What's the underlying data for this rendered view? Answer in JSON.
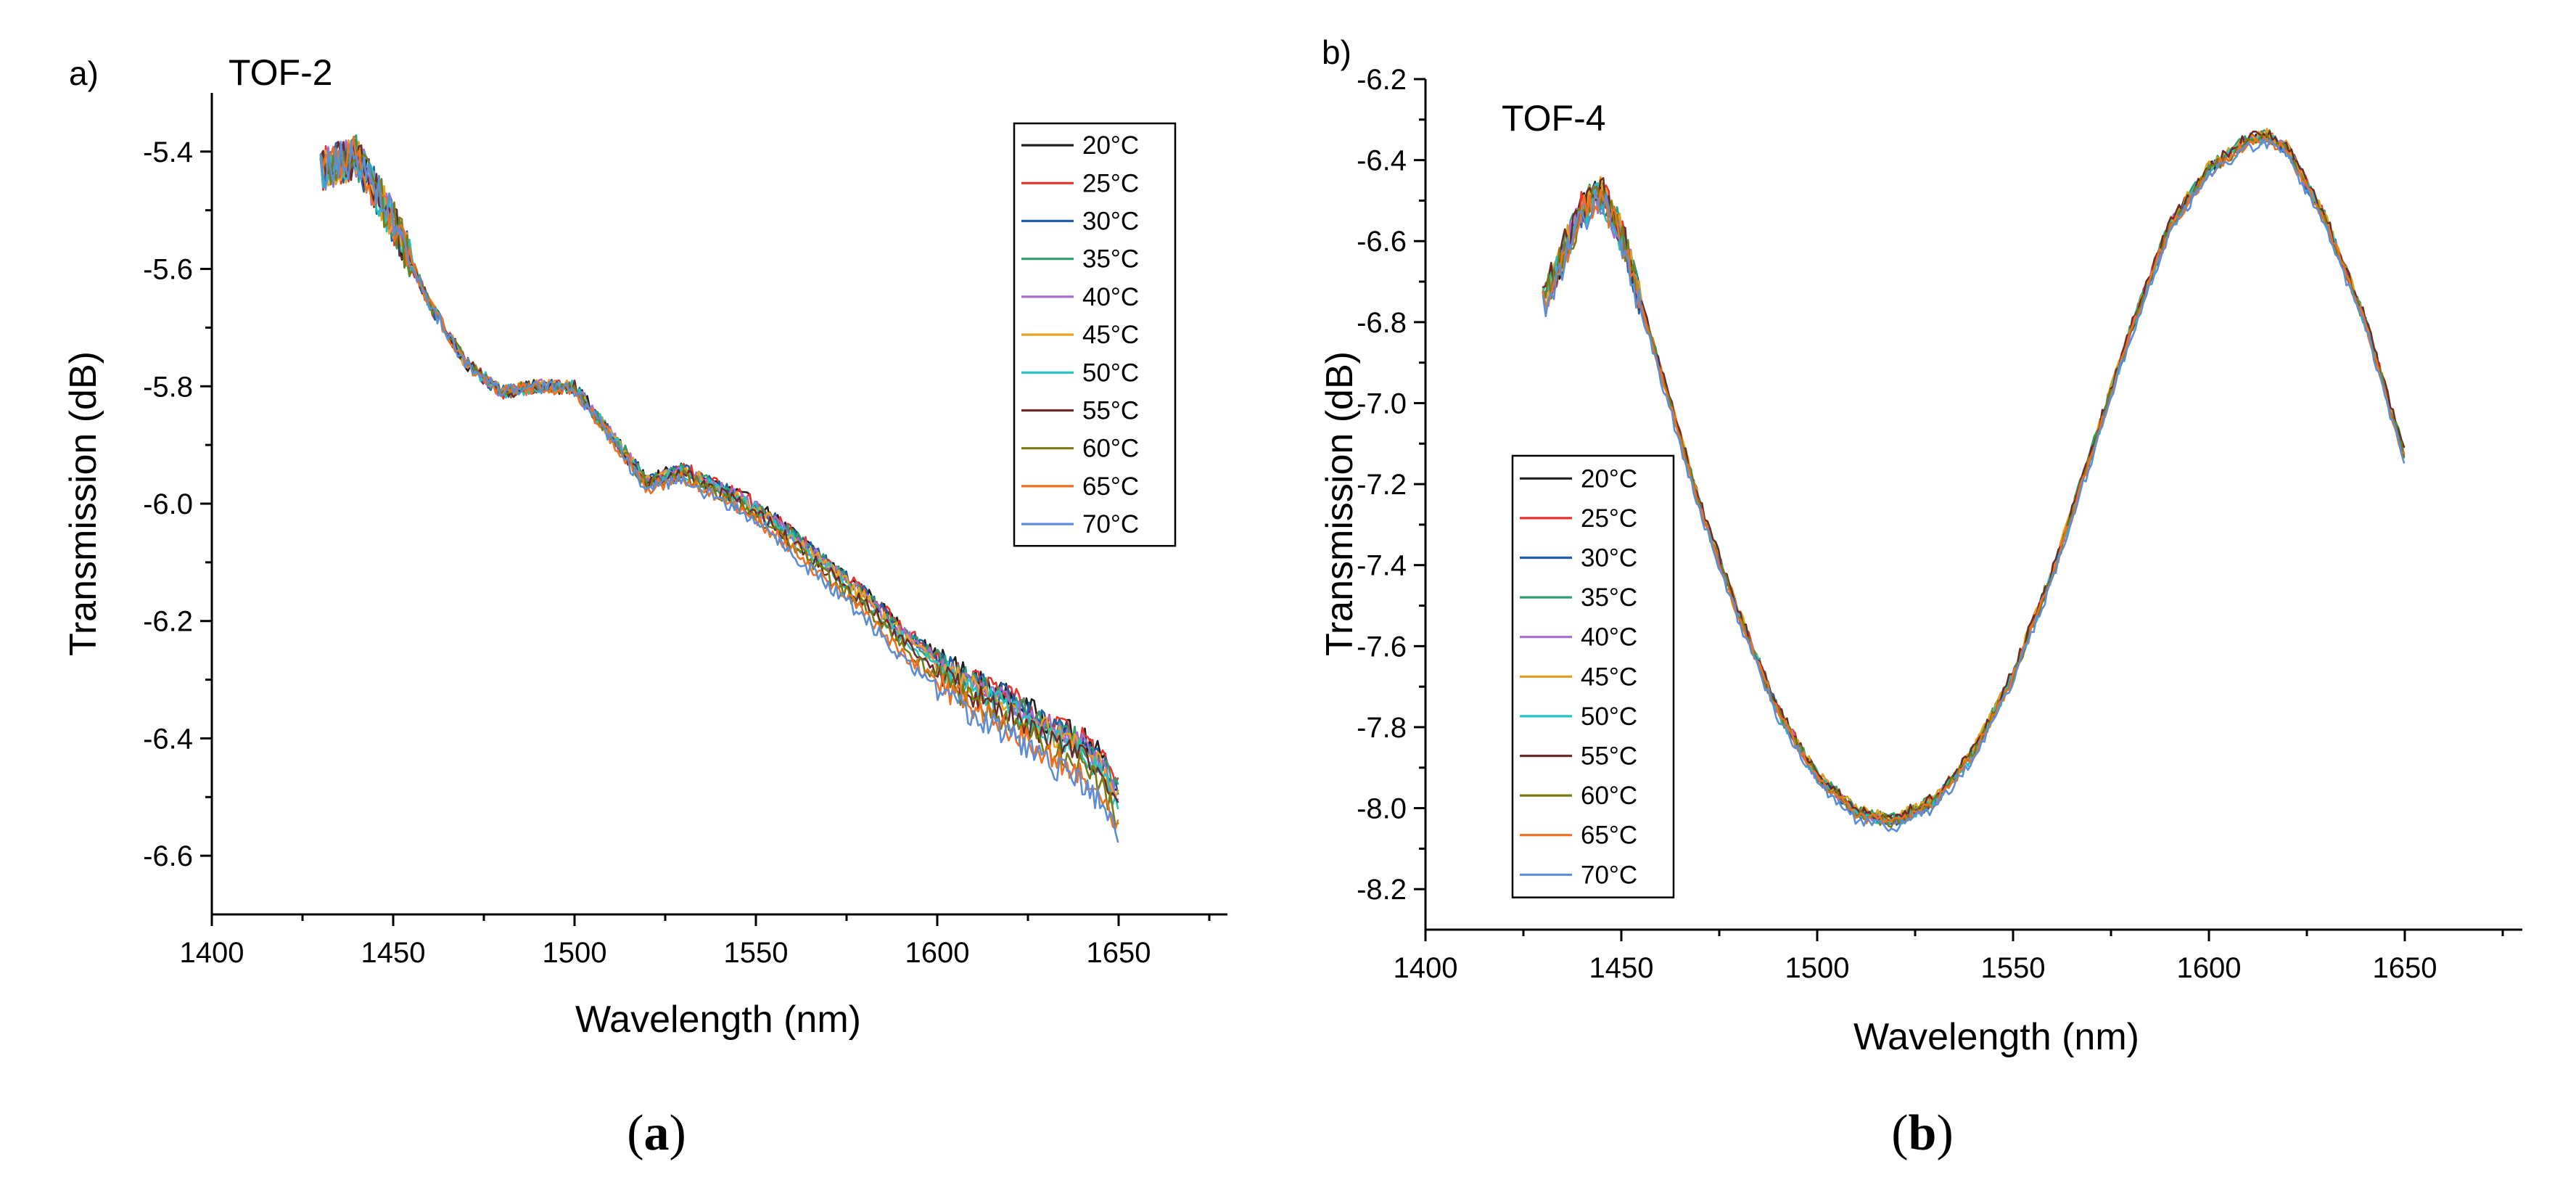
{
  "chart_data": [
    {
      "type": "line",
      "panel_label": "a)",
      "title": "TOF-2",
      "caption": "a",
      "xlabel": "Wavelength (nm)",
      "ylabel": "Transmission (dB)",
      "xlim": [
        1400,
        1680
      ],
      "ylim": [
        -6.7,
        -5.3
      ],
      "x_ticks": [
        1400,
        1450,
        1500,
        1550,
        1600,
        1650
      ],
      "x_tick_labels": [
        "1400",
        "1450",
        "1500",
        "1550",
        "1600",
        "1650"
      ],
      "y_ticks": [
        -5.4,
        -5.6,
        -5.8,
        -6.0,
        -6.2,
        -6.4,
        -6.6
      ],
      "y_tick_labels": [
        "-5.4",
        "-5.6",
        "-5.8",
        "-6.0",
        "-6.2",
        "-6.4",
        "-6.6"
      ],
      "legend_position": "top-right",
      "x": [
        1430,
        1440,
        1450,
        1460,
        1470,
        1480,
        1490,
        1500,
        1510,
        1520,
        1530,
        1540,
        1550,
        1560,
        1570,
        1580,
        1590,
        1600,
        1610,
        1620,
        1630,
        1640,
        1645,
        1650
      ],
      "base_values": [
        -5.43,
        -5.41,
        -5.52,
        -5.66,
        -5.76,
        -5.81,
        -5.8,
        -5.8,
        -5.88,
        -5.96,
        -5.94,
        -5.97,
        -6.0,
        -6.05,
        -6.1,
        -6.15,
        -6.21,
        -6.26,
        -6.3,
        -6.33,
        -6.37,
        -6.4,
        -6.43,
        -6.49
      ],
      "series": [
        {
          "name": "20°C",
          "color": "#1f1f1f",
          "offset": 0.0
        },
        {
          "name": "25°C",
          "color": "#e8332a",
          "offset": 0.0
        },
        {
          "name": "30°C",
          "color": "#1f5ea8",
          "offset": -0.004
        },
        {
          "name": "35°C",
          "color": "#2f9e6b",
          "offset": -0.008
        },
        {
          "name": "40°C",
          "color": "#a86bd1",
          "offset": -0.012
        },
        {
          "name": "45°C",
          "color": "#e8a21f",
          "offset": -0.018
        },
        {
          "name": "50°C",
          "color": "#22c3c3",
          "offset": -0.026
        },
        {
          "name": "55°C",
          "color": "#6b2b2b",
          "offset": -0.036
        },
        {
          "name": "60°C",
          "color": "#7a7a12",
          "offset": -0.05
        },
        {
          "name": "65°C",
          "color": "#f07020",
          "offset": -0.066
        },
        {
          "name": "70°C",
          "color": "#5b8ed6",
          "offset": -0.08
        }
      ]
    },
    {
      "type": "line",
      "panel_label": "b)",
      "title": "TOF-4",
      "caption": "b",
      "xlabel": "Wavelength (nm)",
      "ylabel": "Transmission (dB)",
      "xlim": [
        1400,
        1680
      ],
      "ylim": [
        -8.3,
        -6.2
      ],
      "x_ticks": [
        1400,
        1450,
        1500,
        1550,
        1600,
        1650
      ],
      "x_tick_labels": [
        "1400",
        "1450",
        "1500",
        "1550",
        "1600",
        "1650"
      ],
      "y_ticks": [
        -6.2,
        -6.4,
        -6.6,
        -6.8,
        -7.0,
        -7.2,
        -7.4,
        -7.6,
        -7.8,
        -8.0,
        -8.2
      ],
      "y_tick_labels": [
        "-6.2",
        "-6.4",
        "-6.6",
        "-6.8",
        "-7.0",
        "-7.2",
        "-7.4",
        "-7.6",
        "-7.8",
        "-8.0",
        "-8.2"
      ],
      "legend_position": "bottom-left",
      "x": [
        1430,
        1440,
        1445,
        1450,
        1460,
        1470,
        1480,
        1490,
        1500,
        1510,
        1520,
        1530,
        1540,
        1550,
        1560,
        1570,
        1580,
        1590,
        1600,
        1610,
        1615,
        1620,
        1630,
        1640,
        1650
      ],
      "base_values": [
        -6.75,
        -6.52,
        -6.48,
        -6.58,
        -6.92,
        -7.25,
        -7.52,
        -7.76,
        -7.92,
        -8.01,
        -8.03,
        -7.98,
        -7.86,
        -7.67,
        -7.42,
        -7.12,
        -6.82,
        -6.56,
        -6.42,
        -6.35,
        -6.34,
        -6.37,
        -6.55,
        -6.8,
        -7.13
      ],
      "series": [
        {
          "name": "20°C",
          "color": "#1f1f1f",
          "offset": 0.0
        },
        {
          "name": "25°C",
          "color": "#e8332a",
          "offset": 0.004
        },
        {
          "name": "30°C",
          "color": "#1f5ea8",
          "offset": -0.004
        },
        {
          "name": "35°C",
          "color": "#2f9e6b",
          "offset": 0.006
        },
        {
          "name": "40°C",
          "color": "#a86bd1",
          "offset": -0.006
        },
        {
          "name": "45°C",
          "color": "#e0a01a",
          "offset": 0.008
        },
        {
          "name": "50°C",
          "color": "#22c3c3",
          "offset": -0.008
        },
        {
          "name": "55°C",
          "color": "#6b2b2b",
          "offset": 0.01
        },
        {
          "name": "60°C",
          "color": "#7a7a12",
          "offset": -0.01
        },
        {
          "name": "65°C",
          "color": "#f07020",
          "offset": -0.014
        },
        {
          "name": "70°C",
          "color": "#5b8ed6",
          "offset": -0.03
        }
      ]
    }
  ]
}
